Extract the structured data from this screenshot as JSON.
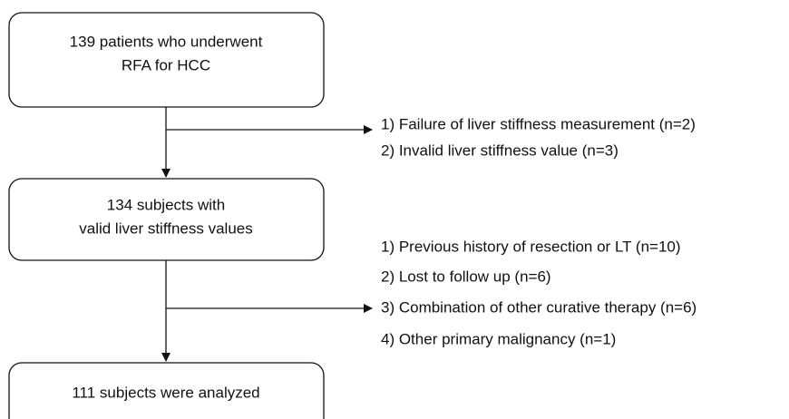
{
  "nodes": [
    {
      "lines": [
        "139 patients who underwent",
        "RFA for HCC"
      ]
    },
    {
      "lines": [
        "134 subjects with",
        "valid liver stiffness values"
      ]
    },
    {
      "lines": [
        "111 subjects were analyzed"
      ]
    }
  ],
  "exclusions": [
    {
      "items": [
        "1) Failure of liver stiffness measurement (n=2)",
        "2) Invalid liver stiffness value (n=3)"
      ]
    },
    {
      "items": [
        "1) Previous history of resection or LT (n=10)",
        "2) Lost to follow up (n=6)",
        "3) Combination of other curative therapy (n=6)",
        "4) Other primary malignancy (n=1)"
      ]
    }
  ]
}
